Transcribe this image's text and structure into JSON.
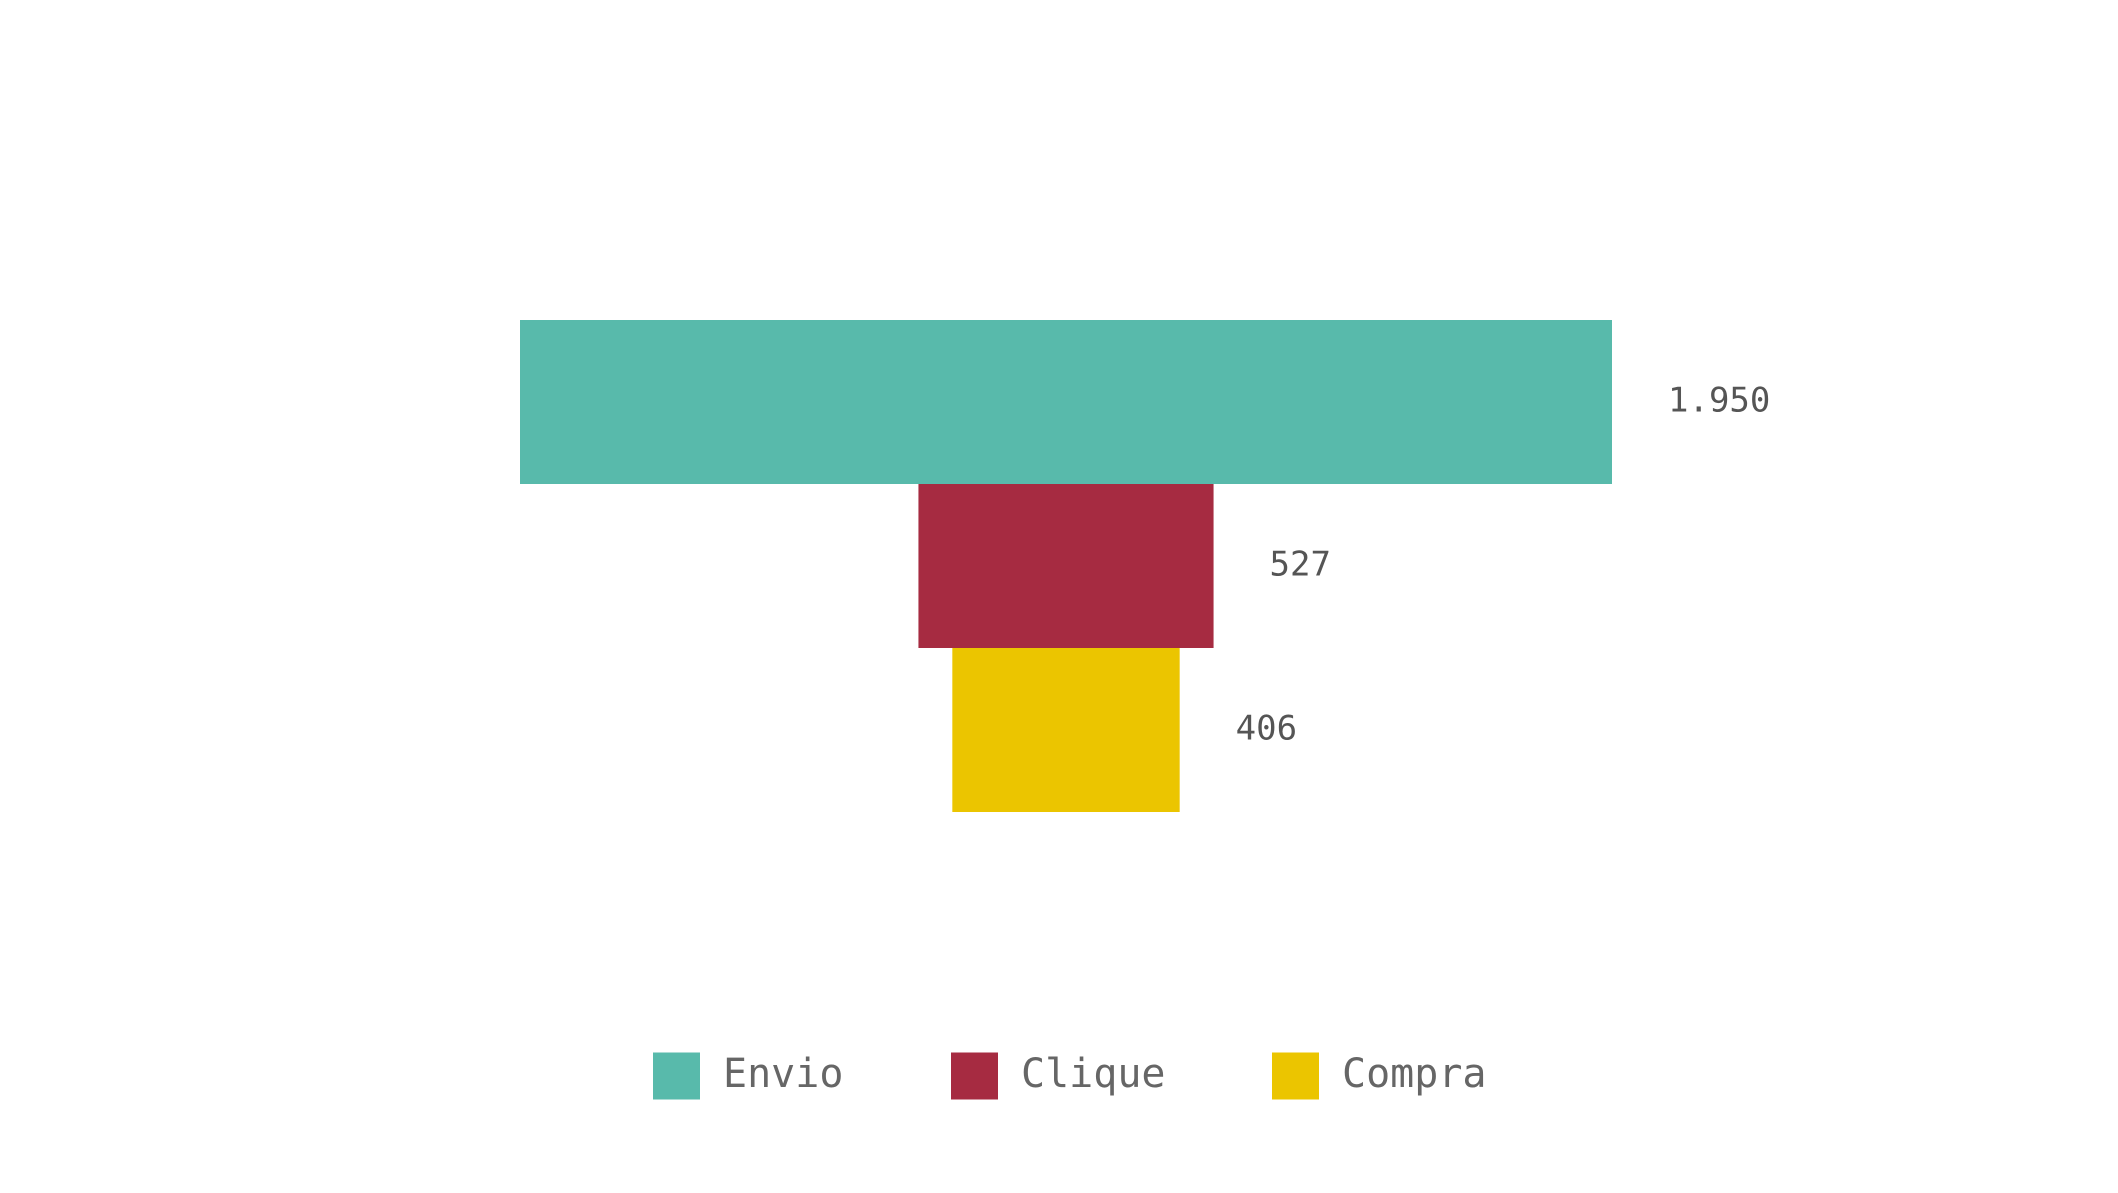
{
  "chart_data": {
    "type": "funnel",
    "categories": [
      "Envio",
      "Clique",
      "Compra"
    ],
    "values": [
      1950,
      527,
      406
    ],
    "value_labels": [
      "1.950",
      "527",
      "406"
    ],
    "colors": [
      "#58BAAB",
      "#A62B41",
      "#EBC500"
    ],
    "legend": {
      "position": "bottom-center",
      "entries": [
        "Envio",
        "Clique",
        "Compra"
      ]
    },
    "grid": false
  }
}
